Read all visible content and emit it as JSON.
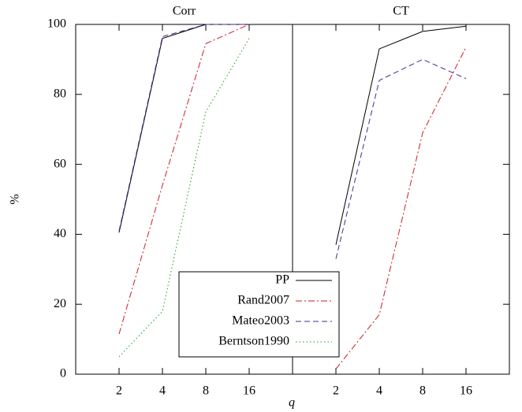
{
  "chart_data": [
    {
      "type": "line",
      "title": "Corr",
      "xlabel": "q",
      "ylabel": "%",
      "categories": [
        "2",
        "4",
        "8",
        "16"
      ],
      "ylim": [
        0,
        100
      ],
      "yticks": [
        0,
        20,
        40,
        60,
        80,
        100
      ],
      "series": [
        {
          "name": "PP",
          "color": "#000000",
          "dash": "solid",
          "values": [
            40.5,
            96,
            100,
            100
          ]
        },
        {
          "name": "Rand2007",
          "color": "#cc1a2a",
          "dash": "dashdot",
          "values": [
            11.5,
            54,
            94.5,
            100
          ]
        },
        {
          "name": "Mateo2003",
          "color": "#4a2a8c",
          "dash": "dashed",
          "values": [
            41,
            96.5,
            100,
            100
          ]
        },
        {
          "name": "Berntson1990",
          "color": "#1a9a1a",
          "dash": "dotted",
          "values": [
            5,
            18,
            75,
            96
          ]
        }
      ]
    },
    {
      "type": "line",
      "title": "CT",
      "categories": [
        "2",
        "4",
        "8",
        "16"
      ],
      "ylim": [
        0,
        100
      ],
      "yticks": [
        0,
        20,
        40,
        60,
        80,
        100
      ],
      "series": [
        {
          "name": "PP",
          "color": "#000000",
          "dash": "solid",
          "values": [
            37,
            93,
            98,
            99.5
          ]
        },
        {
          "name": "Rand2007",
          "color": "#cc1a2a",
          "dash": "dashdot",
          "values": [
            1.5,
            17,
            69,
            93.5
          ]
        },
        {
          "name": "Mateo2003",
          "color": "#4a2a8c",
          "dash": "dashed",
          "values": [
            33,
            84,
            90,
            84.5
          ]
        }
      ]
    }
  ]
}
